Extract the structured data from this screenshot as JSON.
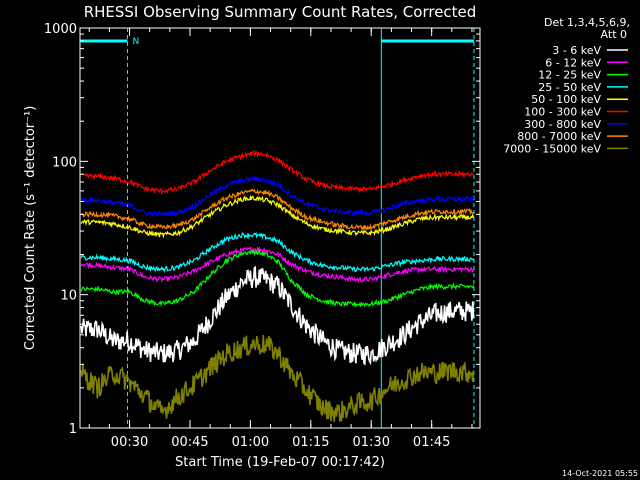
{
  "chart_data": {
    "type": "line",
    "title": "RHESSI Observing Summary Count Rates, Corrected",
    "ylabel": "Corrected Count Rate (s⁻¹ detector⁻¹)",
    "xlabel": "Start Time (19-Feb-07 00:17:42)",
    "yscale": "log",
    "ylim": [
      1,
      1000
    ],
    "xlim_minutes": [
      17.7,
      117
    ],
    "y_ticks": [
      {
        "value": 1,
        "label": "1"
      },
      {
        "value": 10,
        "label": "10"
      },
      {
        "value": 100,
        "label": "100"
      },
      {
        "value": 1000,
        "label": "1000"
      }
    ],
    "x_ticks": [
      {
        "value": 30,
        "label": "00:30"
      },
      {
        "value": 45,
        "label": "00:45"
      },
      {
        "value": 60,
        "label": "01:00"
      },
      {
        "value": 75,
        "label": "01:15"
      },
      {
        "value": 90,
        "label": "01:30"
      },
      {
        "value": 105,
        "label": "01:45"
      }
    ],
    "legend_header": [
      "Det 1,3,4,5,6,9,",
      "Att 0"
    ],
    "legend_position": "right",
    "x_samples_minutes": [
      18,
      22,
      26,
      30,
      34,
      38,
      42,
      46,
      50,
      54,
      58,
      61,
      64,
      67,
      70,
      74,
      78,
      82,
      86,
      90,
      94,
      98,
      102,
      106,
      110,
      114,
      116
    ],
    "series": [
      {
        "name": "3 - 6 keV",
        "color": "#ffffff",
        "values": [
          5.5,
          5.5,
          4.5,
          4.5,
          3.8,
          3.6,
          3.8,
          4.5,
          6.5,
          9.5,
          12.5,
          13.5,
          13,
          11.5,
          8.5,
          5.8,
          4.5,
          3.8,
          3.6,
          3.6,
          4.2,
          5.0,
          6.2,
          7.2,
          7.5,
          7.5,
          7.6
        ]
      },
      {
        "name": "6 - 12 keV",
        "color": "#ff00ff",
        "values": [
          17,
          16.5,
          16,
          15.5,
          13.5,
          13,
          13.5,
          15,
          17.5,
          20,
          21.5,
          22,
          21.5,
          20,
          17,
          15,
          14,
          13.5,
          13,
          13,
          14,
          15,
          15.5,
          15.5,
          15.5,
          15.5,
          15.5
        ]
      },
      {
        "name": "12 - 25 keV",
        "color": "#00ff00",
        "values": [
          11,
          11,
          10.5,
          10.5,
          9,
          8.5,
          9,
          10.5,
          14,
          18,
          20.5,
          21,
          20,
          17.5,
          13,
          10,
          9,
          8.5,
          8.5,
          8.5,
          9,
          10,
          11,
          11.5,
          11.5,
          11.5,
          11.5
        ]
      },
      {
        "name": "25 - 50 keV",
        "color": "#00ffff",
        "values": [
          19,
          19,
          18.5,
          18,
          16,
          15.5,
          16,
          18,
          22,
          26,
          28,
          28,
          27,
          25,
          21,
          18,
          16.5,
          16,
          15.5,
          15.5,
          16.5,
          17.5,
          18,
          18.5,
          18.5,
          18.5,
          18.5
        ]
      },
      {
        "name": "50 - 100 keV",
        "color": "#ffff00",
        "values": [
          35,
          35,
          34,
          32,
          29,
          28,
          29,
          33,
          40,
          47,
          52,
          53,
          51,
          47,
          40,
          34,
          31,
          30,
          29,
          29,
          31,
          34,
          37,
          38,
          38,
          38,
          38
        ]
      },
      {
        "name": "100 - 300 keV",
        "color": "#ff0000",
        "values": [
          78,
          77,
          75,
          70,
          62,
          60,
          62,
          70,
          85,
          100,
          110,
          115,
          112,
          102,
          87,
          73,
          66,
          63,
          62,
          62,
          66,
          72,
          78,
          80,
          80,
          80,
          80
        ]
      },
      {
        "name": "300 - 800 keV",
        "color": "#0000ff",
        "values": [
          51,
          51,
          49,
          47,
          41,
          40,
          41,
          46,
          56,
          66,
          72,
          74,
          72,
          66,
          56,
          48,
          44,
          42,
          41,
          41,
          44,
          48,
          51,
          52,
          52,
          52,
          52
        ]
      },
      {
        "name": "800 - 7000 keV",
        "color": "#ff8800",
        "values": [
          40,
          40,
          39,
          37,
          33,
          32,
          33,
          37,
          45,
          53,
          58,
          60,
          58,
          53,
          45,
          38,
          35,
          33,
          32,
          32,
          35,
          38,
          41,
          42,
          42,
          42,
          42
        ]
      },
      {
        "name": "7000 - 15000 keV",
        "color": "#808000",
        "values": [
          2.6,
          2.0,
          2.6,
          2.2,
          1.7,
          1.3,
          1.7,
          2.1,
          2.8,
          3.6,
          4.0,
          4.3,
          4.2,
          3.6,
          2.6,
          1.9,
          1.4,
          1.3,
          1.5,
          1.6,
          2.0,
          2.3,
          2.6,
          2.6,
          2.7,
          2.6,
          2.6
        ]
      }
    ],
    "annotations": {
      "night_marker": "N",
      "night_intervals_minutes": [
        [
          17.7,
          29.5
        ],
        [
          92.5,
          115.5
        ]
      ]
    },
    "footer_timestamp": "14-Oct-2021 05:55"
  }
}
